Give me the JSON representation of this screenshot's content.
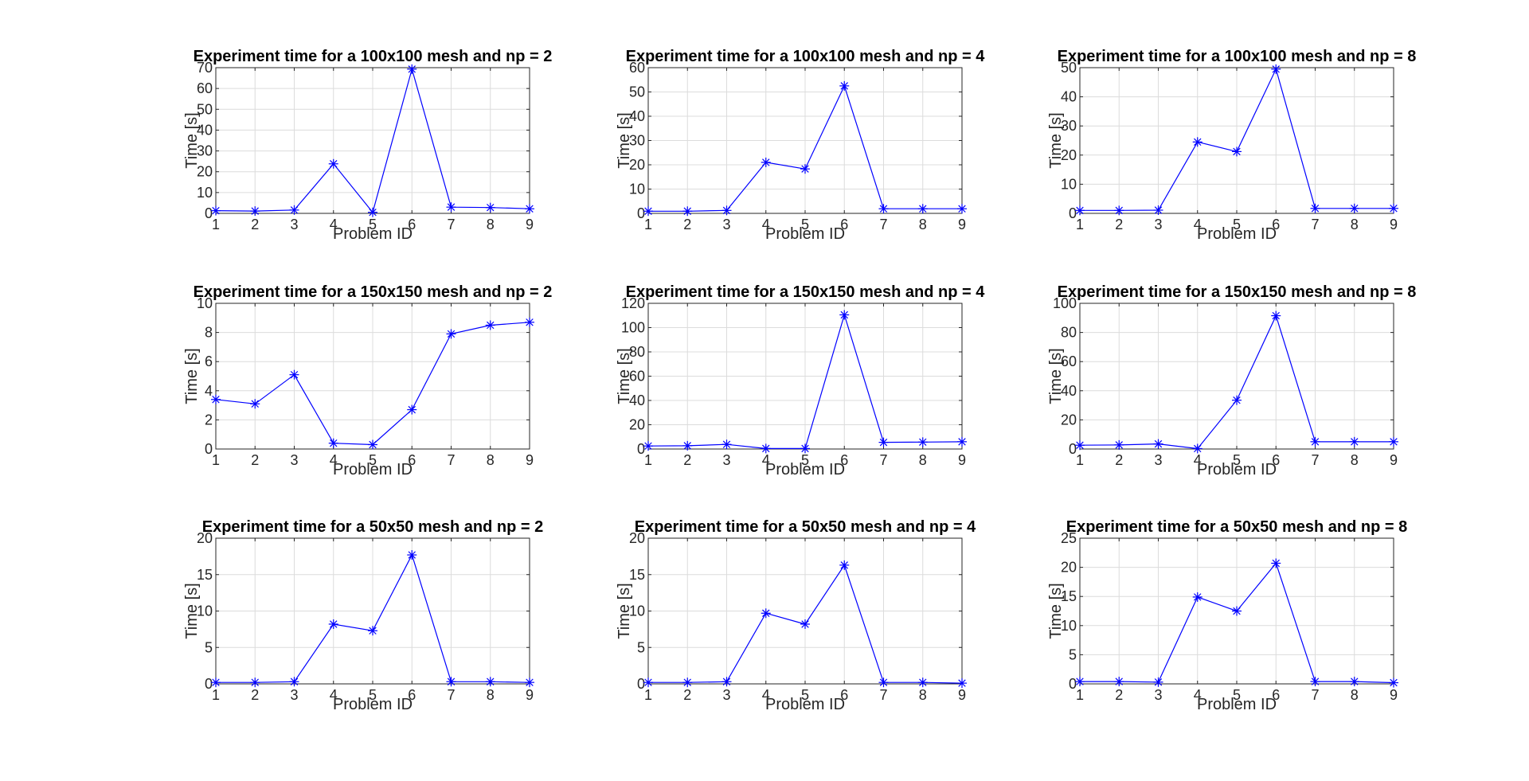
{
  "figure": {
    "background": "#ffffff",
    "line_color": "#0000ff",
    "grid_color": "#dcdcdc",
    "axis_color": "#262626"
  },
  "chart_data": [
    {
      "type": "line",
      "title": "Experiment time for a 100x100 mesh and np = 2",
      "xlabel": "Problem ID",
      "ylabel": "Time [s]",
      "x": [
        1,
        2,
        3,
        4,
        5,
        6,
        7,
        8,
        9
      ],
      "xticks": [
        1,
        2,
        3,
        4,
        5,
        6,
        7,
        8,
        9
      ],
      "xlim": [
        1,
        9
      ],
      "ylim": [
        0,
        70
      ],
      "yticks": [
        0,
        10,
        20,
        30,
        40,
        50,
        60,
        70
      ],
      "grid": true,
      "series": [
        {
          "values": [
            1.3,
            1.1,
            1.6,
            23.8,
            0.5,
            69.3,
            3.0,
            2.8,
            2.2
          ],
          "marker": "*",
          "color": "#0000ff"
        }
      ]
    },
    {
      "type": "line",
      "title": "Experiment time for a 100x100 mesh and np = 4",
      "xlabel": "Problem ID",
      "ylabel": "Time [s]",
      "x": [
        1,
        2,
        3,
        4,
        5,
        6,
        7,
        8,
        9
      ],
      "xticks": [
        1,
        2,
        3,
        4,
        5,
        6,
        7,
        8,
        9
      ],
      "xlim": [
        1,
        9
      ],
      "ylim": [
        0,
        60
      ],
      "yticks": [
        0,
        10,
        20,
        30,
        40,
        50,
        60
      ],
      "grid": true,
      "series": [
        {
          "values": [
            0.9,
            0.9,
            1.2,
            21.0,
            18.3,
            52.5,
            1.9,
            1.9,
            1.9
          ],
          "marker": "*",
          "color": "#0000ff"
        }
      ]
    },
    {
      "type": "line",
      "title": "Experiment time for a 100x100 mesh and np = 8",
      "xlabel": "Problem ID",
      "ylabel": "Time [s]",
      "x": [
        1,
        2,
        3,
        4,
        5,
        6,
        7,
        8,
        9
      ],
      "xticks": [
        1,
        2,
        3,
        4,
        5,
        6,
        7,
        8,
        9
      ],
      "xlim": [
        1,
        9
      ],
      "ylim": [
        0,
        50
      ],
      "yticks": [
        0,
        10,
        20,
        30,
        40,
        50
      ],
      "grid": true,
      "series": [
        {
          "values": [
            1.0,
            1.0,
            1.1,
            24.5,
            21.2,
            49.5,
            1.7,
            1.7,
            1.7
          ],
          "marker": "*",
          "color": "#0000ff"
        }
      ]
    },
    {
      "type": "line",
      "title": "Experiment time for a 150x150 mesh and np = 2",
      "xlabel": "Problem ID",
      "ylabel": "Time [s]",
      "x": [
        1,
        2,
        3,
        4,
        5,
        6,
        7,
        8,
        9
      ],
      "xticks": [
        1,
        2,
        3,
        4,
        5,
        6,
        7,
        8,
        9
      ],
      "xlim": [
        1,
        9
      ],
      "ylim": [
        0,
        10
      ],
      "yticks": [
        0,
        2,
        4,
        6,
        8,
        10
      ],
      "grid": true,
      "series": [
        {
          "values": [
            3.4,
            3.1,
            5.1,
            0.4,
            0.3,
            2.7,
            7.9,
            8.5,
            8.7
          ],
          "marker": "*",
          "color": "#0000ff"
        }
      ]
    },
    {
      "type": "line",
      "title": "Experiment time for a 150x150 mesh and np = 4",
      "xlabel": "Problem ID",
      "ylabel": "Time [s]",
      "x": [
        1,
        2,
        3,
        4,
        5,
        6,
        7,
        8,
        9
      ],
      "xticks": [
        1,
        2,
        3,
        4,
        5,
        6,
        7,
        8,
        9
      ],
      "xlim": [
        1,
        9
      ],
      "ylim": [
        0,
        120
      ],
      "yticks": [
        0,
        20,
        40,
        60,
        80,
        100,
        120
      ],
      "grid": true,
      "series": [
        {
          "values": [
            2.5,
            2.7,
            3.8,
            0.4,
            0.4,
            110.5,
            5.5,
            5.7,
            6.0
          ],
          "marker": "*",
          "color": "#0000ff"
        }
      ]
    },
    {
      "type": "line",
      "title": "Experiment time for a 150x150 mesh and np = 8",
      "xlabel": "Problem ID",
      "ylabel": "Time [s]",
      "x": [
        1,
        2,
        3,
        4,
        5,
        6,
        7,
        8,
        9
      ],
      "xticks": [
        1,
        2,
        3,
        4,
        5,
        6,
        7,
        8,
        9
      ],
      "xlim": [
        1,
        9
      ],
      "ylim": [
        0,
        100
      ],
      "yticks": [
        0,
        20,
        40,
        60,
        80,
        100
      ],
      "grid": true,
      "series": [
        {
          "values": [
            2.6,
            2.8,
            3.5,
            0.3,
            33.5,
            91.5,
            5.0,
            5.0,
            5.0
          ],
          "marker": "*",
          "color": "#0000ff"
        }
      ]
    },
    {
      "type": "line",
      "title": "Experiment time for a 50x50 mesh and np = 2",
      "xlabel": "Problem ID",
      "ylabel": "Time [s]",
      "x": [
        1,
        2,
        3,
        4,
        5,
        6,
        7,
        8,
        9
      ],
      "xticks": [
        1,
        2,
        3,
        4,
        5,
        6,
        7,
        8,
        9
      ],
      "xlim": [
        1,
        9
      ],
      "ylim": [
        0,
        20
      ],
      "yticks": [
        0,
        5,
        10,
        15,
        20
      ],
      "grid": true,
      "series": [
        {
          "values": [
            0.2,
            0.2,
            0.3,
            8.2,
            7.3,
            17.7,
            0.3,
            0.3,
            0.2
          ],
          "marker": "*",
          "color": "#0000ff"
        }
      ]
    },
    {
      "type": "line",
      "title": "Experiment time for a 50x50 mesh and np = 4",
      "xlabel": "Problem ID",
      "ylabel": "Time [s]",
      "x": [
        1,
        2,
        3,
        4,
        5,
        6,
        7,
        8,
        9
      ],
      "xticks": [
        1,
        2,
        3,
        4,
        5,
        6,
        7,
        8,
        9
      ],
      "xlim": [
        1,
        9
      ],
      "ylim": [
        0,
        20
      ],
      "yticks": [
        0,
        5,
        10,
        15,
        20
      ],
      "grid": true,
      "series": [
        {
          "values": [
            0.2,
            0.2,
            0.3,
            9.7,
            8.2,
            16.3,
            0.2,
            0.2,
            0.1
          ],
          "marker": "*",
          "color": "#0000ff"
        }
      ]
    },
    {
      "type": "line",
      "title": "Experiment time for a 50x50 mesh and np = 8",
      "xlabel": "Problem ID",
      "ylabel": "Time [s]",
      "x": [
        1,
        2,
        3,
        4,
        5,
        6,
        7,
        8,
        9
      ],
      "xticks": [
        1,
        2,
        3,
        4,
        5,
        6,
        7,
        8,
        9
      ],
      "xlim": [
        1,
        9
      ],
      "ylim": [
        0,
        25
      ],
      "yticks": [
        0,
        5,
        10,
        15,
        20,
        25
      ],
      "grid": true,
      "series": [
        {
          "values": [
            0.4,
            0.4,
            0.3,
            14.9,
            12.5,
            20.7,
            0.4,
            0.4,
            0.2
          ],
          "marker": "*",
          "color": "#0000ff"
        }
      ]
    }
  ]
}
